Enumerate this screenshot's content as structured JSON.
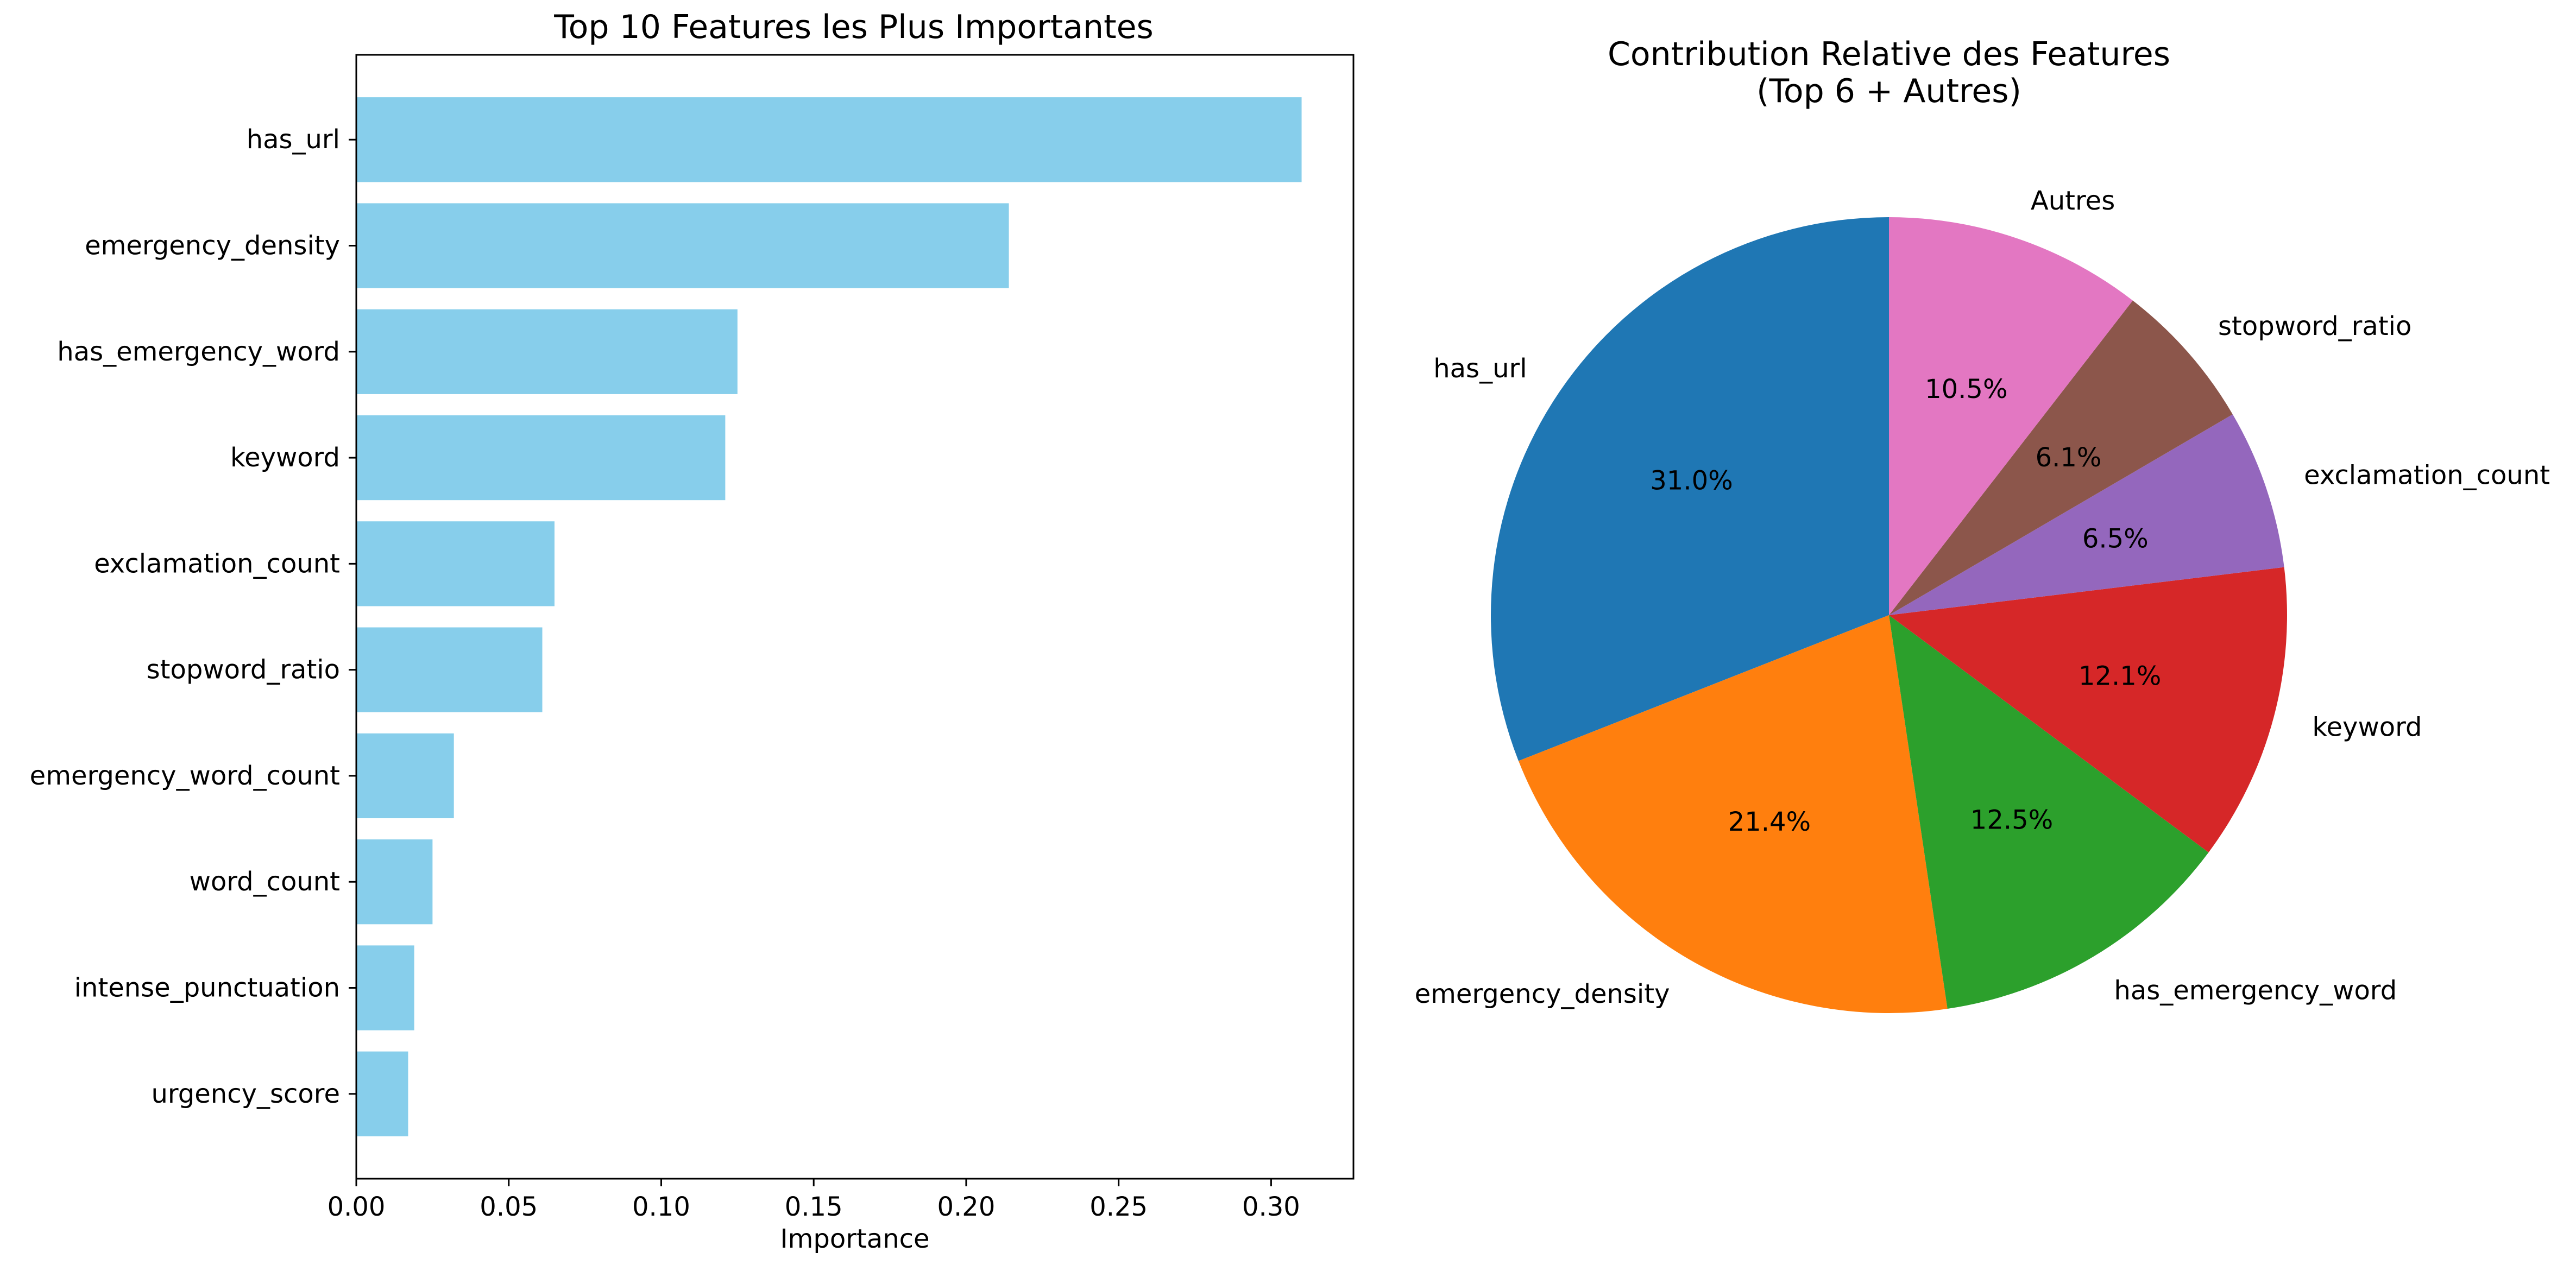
{
  "chart_data": [
    {
      "type": "bar",
      "orientation": "horizontal",
      "title": "Top 10 Features les Plus Importantes",
      "xlabel": "Importance",
      "ylabel": "",
      "xlim": [
        0,
        0.327
      ],
      "xticks": [
        0.0,
        0.05,
        0.1,
        0.15,
        0.2,
        0.25,
        0.3
      ],
      "xtick_labels": [
        "0.00",
        "0.05",
        "0.10",
        "0.15",
        "0.20",
        "0.25",
        "0.30"
      ],
      "categories": [
        "has_url",
        "emergency_density",
        "has_emergency_word",
        "keyword",
        "exclamation_count",
        "stopword_ratio",
        "emergency_word_count",
        "word_count",
        "intense_punctuation",
        "urgency_score"
      ],
      "values": [
        0.31,
        0.214,
        0.125,
        0.121,
        0.065,
        0.061,
        0.032,
        0.025,
        0.019,
        0.017
      ],
      "bar_color": "#87ceeb",
      "grid": false
    },
    {
      "type": "pie",
      "title_lines": [
        "Contribution Relative des Features",
        "(Top 6 + Autres)"
      ],
      "start_angle_deg": 90,
      "direction": "counterclockwise",
      "labels": [
        "has_url",
        "emergency_density",
        "has_emergency_word",
        "keyword",
        "exclamation_count",
        "stopword_ratio",
        "Autres"
      ],
      "values": [
        31.0,
        21.4,
        12.5,
        12.1,
        6.5,
        6.1,
        10.5
      ],
      "pct_labels": [
        "31.0%",
        "21.4%",
        "12.5%",
        "12.1%",
        "6.5%",
        "6.1%",
        "10.5%"
      ],
      "colors": [
        "#1f77b4",
        "#ff7f0e",
        "#2ca02c",
        "#d62728",
        "#9467bd",
        "#8c564b",
        "#e377c2"
      ]
    }
  ]
}
